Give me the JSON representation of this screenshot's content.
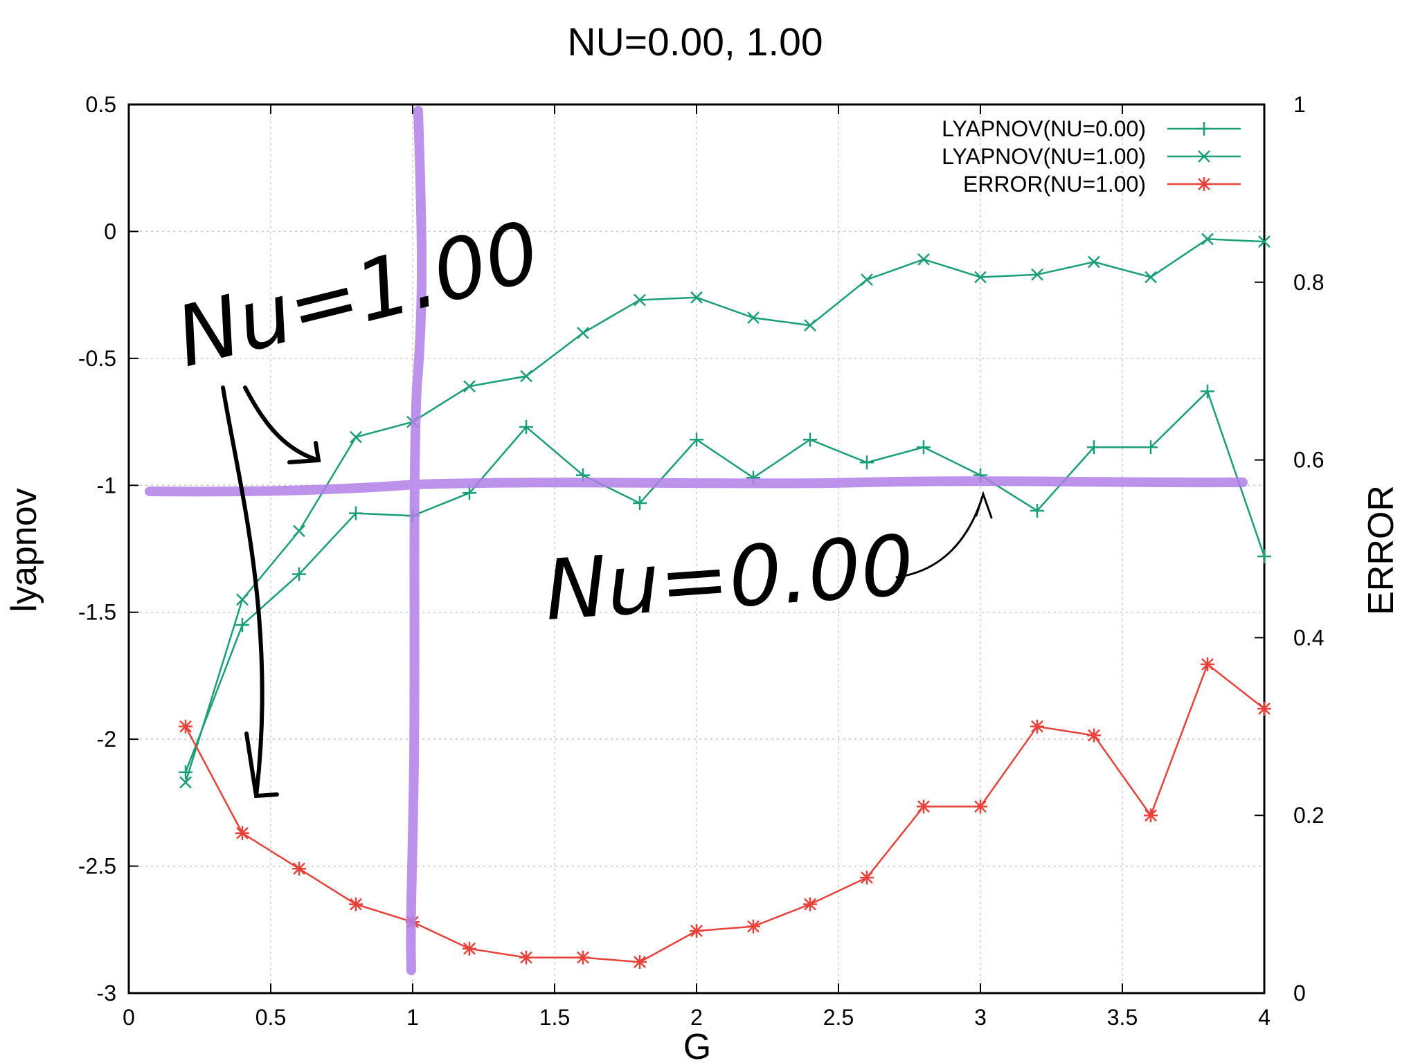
{
  "chart_data": {
    "type": "line",
    "title": "NU=0.00, 1.00",
    "xlabel": "G",
    "ylabel": "lyapnov",
    "y2label": "ERROR",
    "xlim": [
      0,
      4
    ],
    "ylim": [
      -3,
      0.5
    ],
    "y2lim": [
      0,
      1
    ],
    "x_ticks": [
      "0",
      "0.5",
      "1",
      "1.5",
      "2",
      "2.5",
      "3",
      "3.5",
      "4"
    ],
    "y_ticks": [
      "0.5",
      "0",
      "-0.5",
      "-1",
      "-1.5",
      "-2",
      "-2.5",
      "-3"
    ],
    "y2_ticks": [
      "1",
      "0.8",
      "0.6",
      "0.4",
      "0.2",
      "0"
    ],
    "grid": true,
    "legend_position": "top-right",
    "x": [
      0.2,
      0.4,
      0.6,
      0.8,
      1.0,
      1.2,
      1.4,
      1.6,
      1.8,
      2.0,
      2.2,
      2.4,
      2.6,
      2.8,
      3.0,
      3.2,
      3.4,
      3.6,
      3.8,
      4.0
    ],
    "series": [
      {
        "name": "LYAPNOV(NU=0.00)",
        "axis": "left",
        "marker": "plus",
        "color": "#1a9e77",
        "values": [
          -2.13,
          -1.55,
          -1.35,
          -1.11,
          -1.12,
          -1.03,
          -0.77,
          -0.96,
          -1.07,
          -0.82,
          -0.97,
          -0.82,
          -0.91,
          -0.85,
          -0.96,
          -1.1,
          -0.85,
          -0.85,
          -0.63,
          -1.28
        ]
      },
      {
        "name": "LYAPNOV(NU=1.00)",
        "axis": "left",
        "marker": "x",
        "color": "#1a9e77",
        "values": [
          -2.17,
          -1.45,
          -1.18,
          -0.81,
          -0.75,
          -0.61,
          -0.57,
          -0.4,
          -0.27,
          -0.26,
          -0.34,
          -0.37,
          -0.19,
          -0.11,
          -0.18,
          -0.17,
          -0.12,
          -0.18,
          -0.03,
          -0.04
        ]
      },
      {
        "name": "ERROR(NU=1.00)",
        "axis": "right",
        "marker": "star",
        "color": "#e8413a",
        "values": [
          0.3,
          0.18,
          0.14,
          0.1,
          0.08,
          0.05,
          0.04,
          0.04,
          0.035,
          0.07,
          0.075,
          0.1,
          0.13,
          0.21,
          0.21,
          0.3,
          0.29,
          0.2,
          0.37,
          0.32
        ]
      }
    ],
    "annotations": [
      {
        "text": "Nu=1.00"
      },
      {
        "text": "Nu=0.00"
      }
    ]
  },
  "colors": {
    "green": "#1a9e77",
    "red": "#e8413a",
    "highlight": "#b27fe8",
    "grid": "#c8c8c8"
  }
}
